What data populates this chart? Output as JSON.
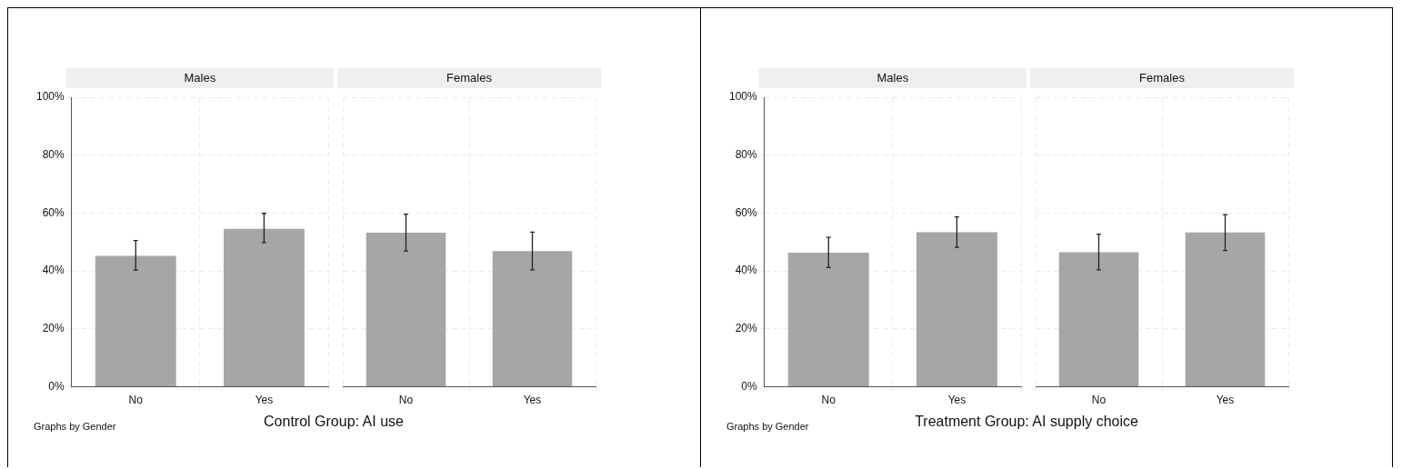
{
  "chart_data": [
    {
      "type": "bar",
      "title": "Males",
      "categories": [
        "No",
        "Yes"
      ],
      "values": [
        45.2,
        54.6
      ],
      "errors": [
        [
          40.3,
          50.5
        ],
        [
          49.8,
          59.9
        ]
      ],
      "color": "#a6a6a6",
      "ylim": [
        0,
        100
      ],
      "yticks": [
        {
          "value": 0,
          "label": "0%"
        },
        {
          "value": 20,
          "label": "20%"
        },
        {
          "value": 40,
          "label": "40%"
        },
        {
          "value": 60,
          "label": "60%"
        },
        {
          "value": 80,
          "label": "80%"
        },
        {
          "value": 100,
          "label": "100%"
        }
      ],
      "grid": true,
      "annotations": [
        "Graphs by Gender",
        "Control Group: AI use"
      ]
    },
    {
      "type": "bar",
      "title": "Females",
      "categories": [
        "No",
        "Yes"
      ],
      "values": [
        53.2,
        46.9
      ],
      "errors": [
        [
          46.9,
          59.6
        ],
        [
          40.4,
          53.4
        ]
      ],
      "color": "#a6a6a6",
      "ylim": [
        0,
        100
      ],
      "yticks": [
        0,
        20,
        40,
        60,
        80,
        100
      ],
      "grid": true,
      "tick_labels": "x"
    },
    {
      "type": "bar",
      "title": "Males",
      "categories": [
        "No",
        "Yes"
      ],
      "values": [
        46.3,
        53.4
      ],
      "errors": [
        [
          41.2,
          51.6
        ],
        [
          48.2,
          58.7
        ]
      ],
      "color": "#a6a6a6",
      "ylim": [
        0,
        100
      ],
      "yticks": [
        {
          "value": 0,
          "label": "0%"
        },
        {
          "value": 20,
          "label": "20%"
        },
        {
          "value": 40,
          "label": "40%"
        },
        {
          "value": 60,
          "label": "60%"
        },
        {
          "value": 80,
          "label": "80%"
        },
        {
          "value": 100,
          "label": "100%"
        }
      ],
      "grid": true,
      "annotations": [
        "Graphs by Gender",
        "Treatment Group: AI supply choice"
      ]
    },
    {
      "type": "bar",
      "title": "Females",
      "categories": [
        "No",
        "Yes"
      ],
      "values": [
        46.5,
        53.3
      ],
      "errors": [
        [
          40.4,
          52.7
        ],
        [
          47.1,
          59.5
        ]
      ],
      "color": "#a6a6a6",
      "ylim": [
        0,
        100
      ],
      "yticks": [
        0,
        20,
        40,
        60,
        80,
        100
      ],
      "grid": true,
      "tick_labels": "x"
    }
  ]
}
